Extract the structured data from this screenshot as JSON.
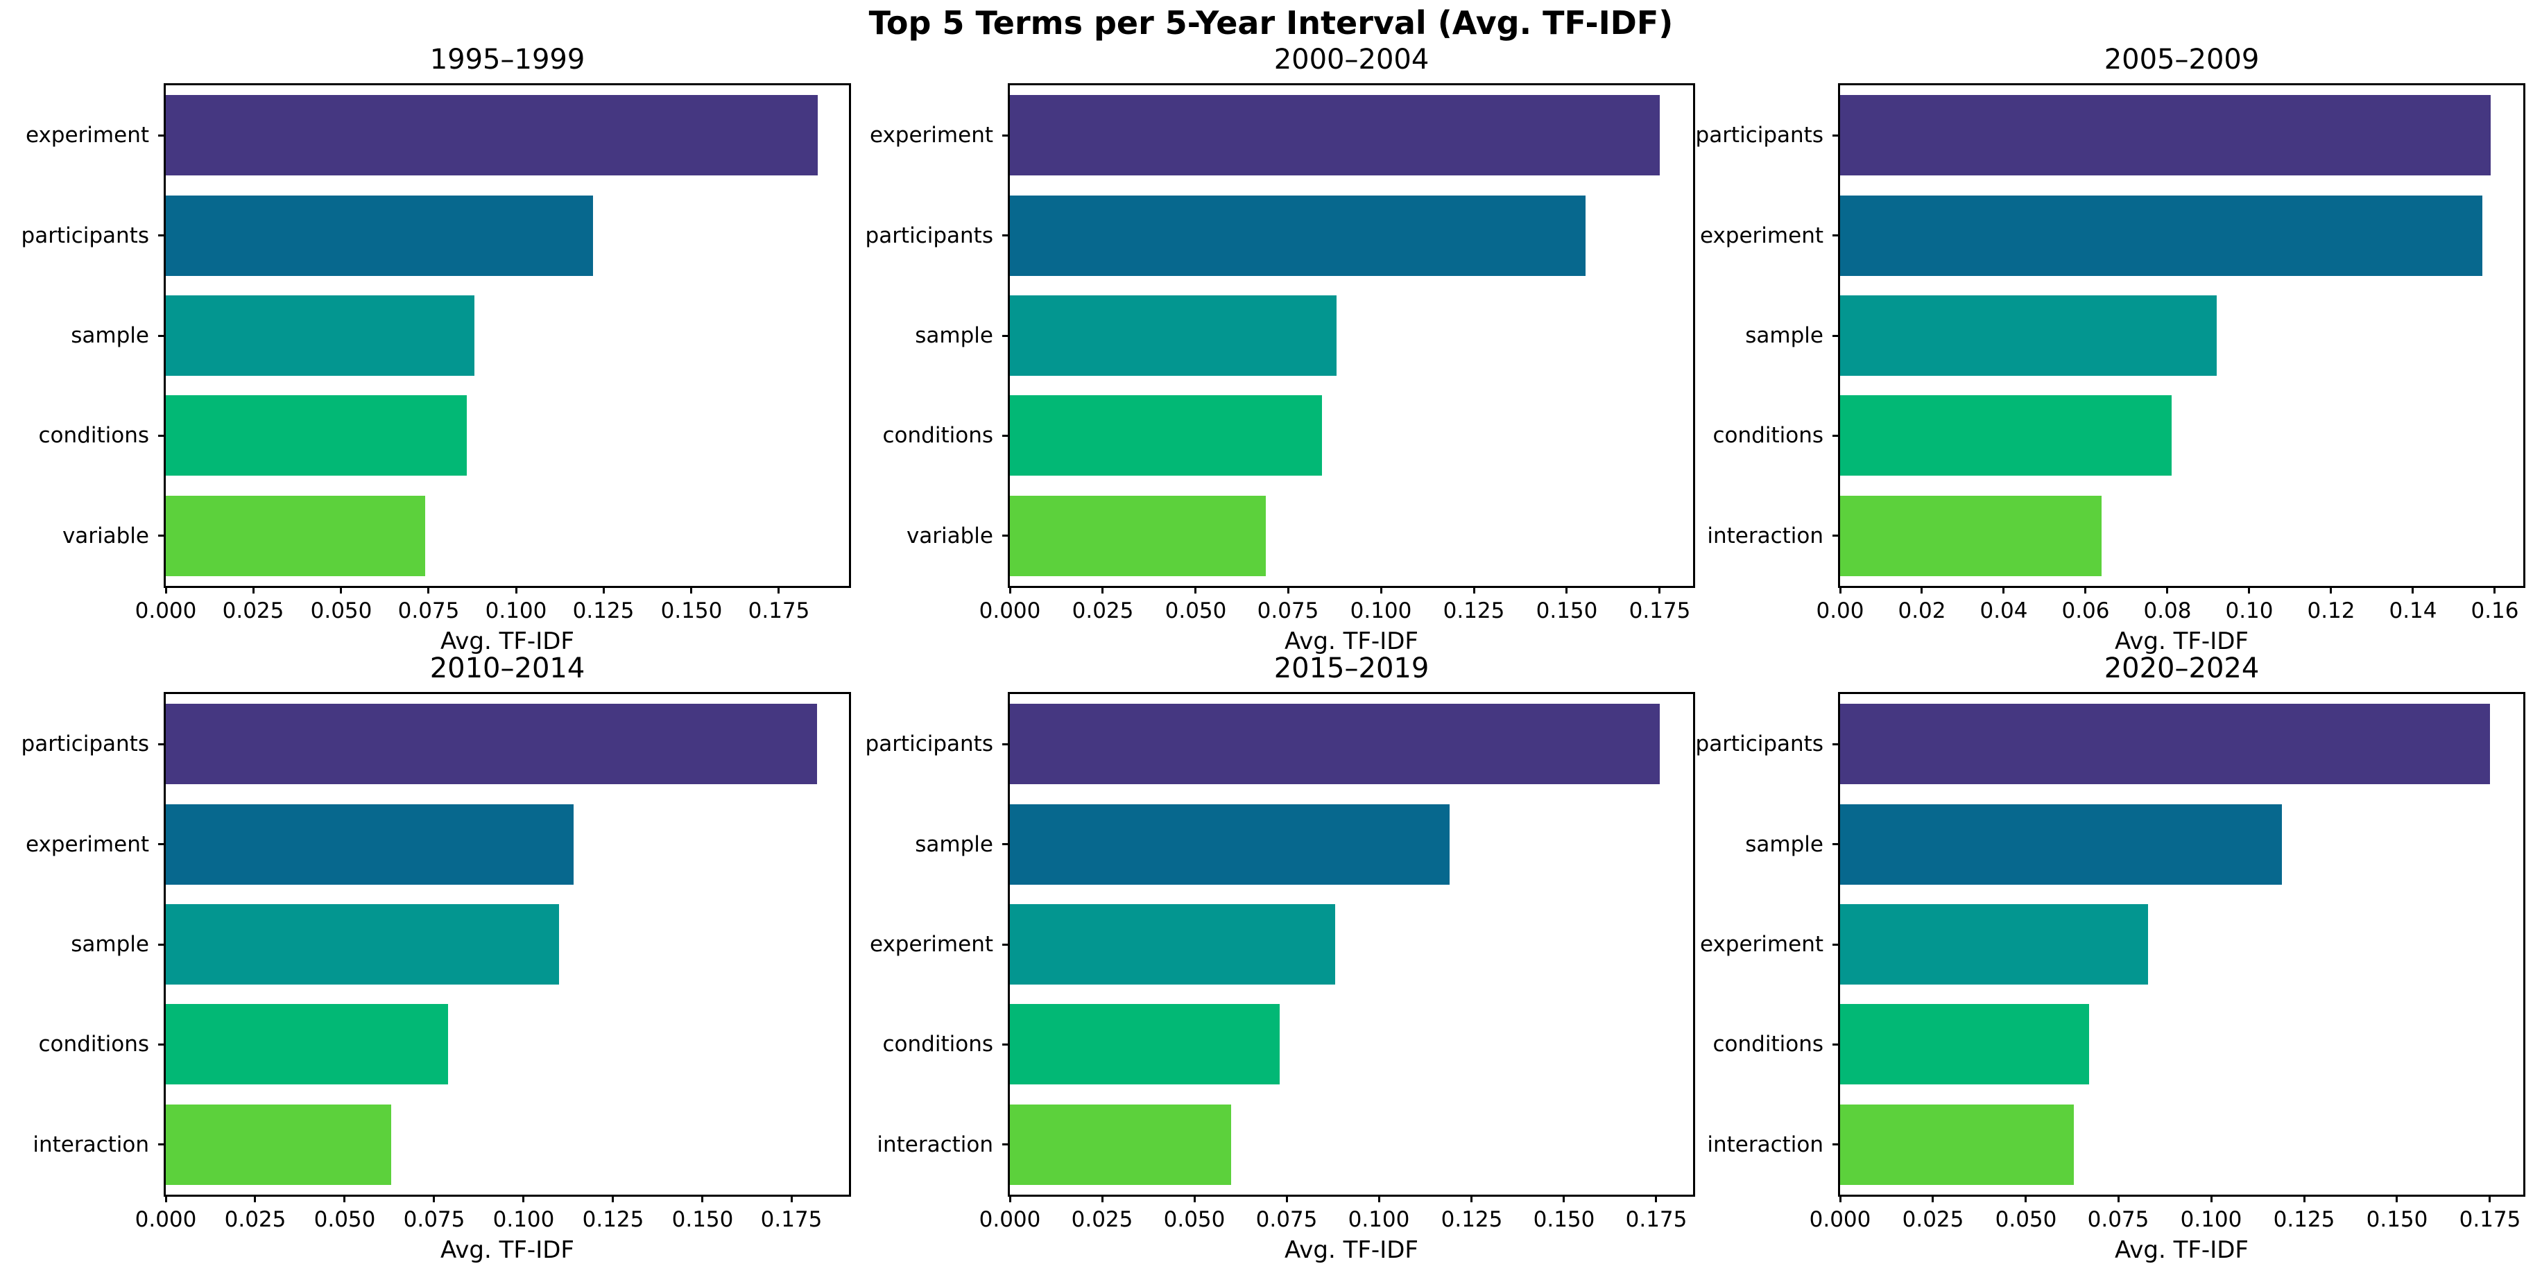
{
  "figure": {
    "title": "Top 5 Terms per 5-Year Interval (Avg. TF-IDF)",
    "background_color": "#ffffff",
    "text_color": "#000000"
  },
  "palette": [
    "#453781",
    "#07688e",
    "#039690",
    "#02b875",
    "#5cd13c"
  ],
  "chart_data": [
    {
      "type": "bar",
      "orientation": "horizontal",
      "title": "1995–1999",
      "xlabel": "Avg. TF-IDF",
      "categories": [
        "experiment",
        "participants",
        "sample",
        "conditions",
        "variable"
      ],
      "values": [
        0.186,
        0.122,
        0.088,
        0.086,
        0.074
      ],
      "xlim": [
        0,
        0.195
      ],
      "xticks": [
        0.0,
        0.025,
        0.05,
        0.075,
        0.1,
        0.125,
        0.15,
        0.175
      ],
      "xtick_labels": [
        "0.000",
        "0.025",
        "0.050",
        "0.075",
        "0.100",
        "0.125",
        "0.150",
        "0.175"
      ],
      "grid": false,
      "legend": false
    },
    {
      "type": "bar",
      "orientation": "horizontal",
      "title": "2000–2004",
      "xlabel": "Avg. TF-IDF",
      "categories": [
        "experiment",
        "participants",
        "sample",
        "conditions",
        "variable"
      ],
      "values": [
        0.175,
        0.155,
        0.088,
        0.084,
        0.069
      ],
      "xlim": [
        0,
        0.184
      ],
      "xticks": [
        0.0,
        0.025,
        0.05,
        0.075,
        0.1,
        0.125,
        0.15,
        0.175
      ],
      "xtick_labels": [
        "0.000",
        "0.025",
        "0.050",
        "0.075",
        "0.100",
        "0.125",
        "0.150",
        "0.175"
      ],
      "grid": false,
      "legend": false
    },
    {
      "type": "bar",
      "orientation": "horizontal",
      "title": "2005–2009",
      "xlabel": "Avg. TF-IDF",
      "categories": [
        "participants",
        "experiment",
        "sample",
        "conditions",
        "interaction"
      ],
      "values": [
        0.159,
        0.157,
        0.092,
        0.081,
        0.064
      ],
      "xlim": [
        0,
        0.167
      ],
      "xticks": [
        0.0,
        0.02,
        0.04,
        0.06,
        0.08,
        0.1,
        0.12,
        0.14,
        0.16
      ],
      "xtick_labels": [
        "0.00",
        "0.02",
        "0.04",
        "0.06",
        "0.08",
        "0.10",
        "0.12",
        "0.14",
        "0.16"
      ],
      "grid": false,
      "legend": false
    },
    {
      "type": "bar",
      "orientation": "horizontal",
      "title": "2010–2014",
      "xlabel": "Avg. TF-IDF",
      "categories": [
        "participants",
        "experiment",
        "sample",
        "conditions",
        "interaction"
      ],
      "values": [
        0.182,
        0.114,
        0.11,
        0.079,
        0.063
      ],
      "xlim": [
        0,
        0.191
      ],
      "xticks": [
        0.0,
        0.025,
        0.05,
        0.075,
        0.1,
        0.125,
        0.15,
        0.175
      ],
      "xtick_labels": [
        "0.000",
        "0.025",
        "0.050",
        "0.075",
        "0.100",
        "0.125",
        "0.150",
        "0.175"
      ],
      "grid": false,
      "legend": false
    },
    {
      "type": "bar",
      "orientation": "horizontal",
      "title": "2015–2019",
      "xlabel": "Avg. TF-IDF",
      "categories": [
        "participants",
        "sample",
        "experiment",
        "conditions",
        "interaction"
      ],
      "values": [
        0.176,
        0.119,
        0.088,
        0.073,
        0.06
      ],
      "xlim": [
        0,
        0.185
      ],
      "xticks": [
        0.0,
        0.025,
        0.05,
        0.075,
        0.1,
        0.125,
        0.15,
        0.175
      ],
      "xtick_labels": [
        "0.000",
        "0.025",
        "0.050",
        "0.075",
        "0.100",
        "0.125",
        "0.150",
        "0.175"
      ],
      "grid": false,
      "legend": false
    },
    {
      "type": "bar",
      "orientation": "horizontal",
      "title": "2020–2024",
      "xlabel": "Avg. TF-IDF",
      "categories": [
        "participants",
        "sample",
        "experiment",
        "conditions",
        "interaction"
      ],
      "values": [
        0.175,
        0.119,
        0.083,
        0.067,
        0.063
      ],
      "xlim": [
        0,
        0.184
      ],
      "xticks": [
        0.0,
        0.025,
        0.05,
        0.075,
        0.1,
        0.125,
        0.15,
        0.175
      ],
      "xtick_labels": [
        "0.000",
        "0.025",
        "0.050",
        "0.075",
        "0.100",
        "0.125",
        "0.150",
        "0.175"
      ],
      "grid": false,
      "legend": false
    }
  ]
}
